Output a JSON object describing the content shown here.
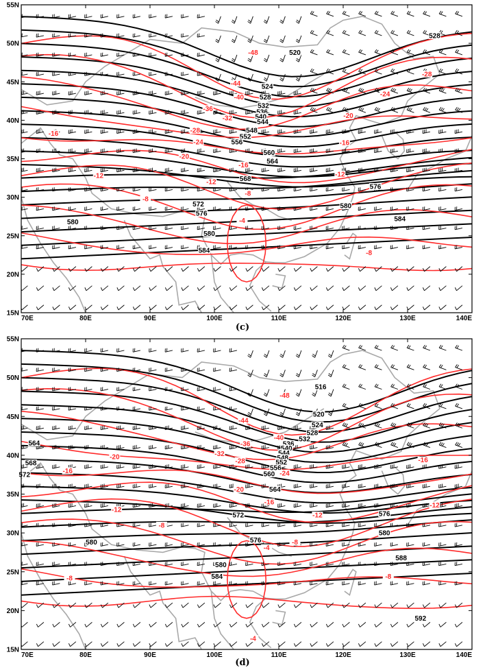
{
  "panels": [
    {
      "id": "c",
      "caption": "(c)",
      "lon_ticks": [
        "70E",
        "80E",
        "90E",
        "100E",
        "110E",
        "120E",
        "130E",
        "140E"
      ],
      "lat_ticks": [
        "15N",
        "20N",
        "25N",
        "30N",
        "35N",
        "40N",
        "45N",
        "50N",
        "55N"
      ],
      "height_labels": [
        {
          "text": "520",
          "lon": 112.5,
          "lat": 48.8
        },
        {
          "text": "528",
          "lon": 134.2,
          "lat": 51.0
        },
        {
          "text": "524",
          "lon": 108.2,
          "lat": 44.4
        },
        {
          "text": "528",
          "lon": 107.9,
          "lat": 43.0
        },
        {
          "text": "532",
          "lon": 107.6,
          "lat": 41.9
        },
        {
          "text": "536",
          "lon": 107.4,
          "lat": 41.1
        },
        {
          "text": "540",
          "lon": 107.2,
          "lat": 40.5
        },
        {
          "text": "544",
          "lon": 107.5,
          "lat": 39.8
        },
        {
          "text": "548",
          "lon": 105.8,
          "lat": 38.7
        },
        {
          "text": "552",
          "lon": 104.8,
          "lat": 37.9
        },
        {
          "text": "556",
          "lon": 103.5,
          "lat": 37.2
        },
        {
          "text": "560",
          "lon": 108.5,
          "lat": 35.8
        },
        {
          "text": "564",
          "lon": 109.0,
          "lat": 34.7
        },
        {
          "text": "568",
          "lon": 104.8,
          "lat": 32.4
        },
        {
          "text": "572",
          "lon": 97.5,
          "lat": 29.1
        },
        {
          "text": "576",
          "lon": 125.0,
          "lat": 31.4
        },
        {
          "text": "576",
          "lon": 98.0,
          "lat": 27.9
        },
        {
          "text": "580",
          "lon": 120.4,
          "lat": 28.9
        },
        {
          "text": "580",
          "lon": 78.0,
          "lat": 26.8
        },
        {
          "text": "580",
          "lon": 99.2,
          "lat": 25.3
        },
        {
          "text": "584",
          "lon": 128.8,
          "lat": 27.2
        },
        {
          "text": "584",
          "lon": 98.4,
          "lat": 23.1
        }
      ],
      "temp_labels": [
        {
          "text": "-48",
          "lon": 106.0,
          "lat": 48.8
        },
        {
          "text": "-44",
          "lon": 103.3,
          "lat": 44.8
        },
        {
          "text": "-40",
          "lon": 103.8,
          "lat": 43.0
        },
        {
          "text": "-36",
          "lon": 99.0,
          "lat": 41.5
        },
        {
          "text": "-32",
          "lon": 102.0,
          "lat": 40.3
        },
        {
          "text": "-28",
          "lon": 97.0,
          "lat": 38.7
        },
        {
          "text": "-24",
          "lon": 97.5,
          "lat": 37.2
        },
        {
          "text": "-20",
          "lon": 95.3,
          "lat": 35.3
        },
        {
          "text": "-28",
          "lon": 133.0,
          "lat": 46.0
        },
        {
          "text": "-24",
          "lon": 126.5,
          "lat": 43.4
        },
        {
          "text": "-20",
          "lon": 120.8,
          "lat": 40.6
        },
        {
          "text": "-16",
          "lon": 75.0,
          "lat": 38.3
        },
        {
          "text": "-16",
          "lon": 120.2,
          "lat": 37.1
        },
        {
          "text": "-16",
          "lon": 104.5,
          "lat": 34.2
        },
        {
          "text": "-12",
          "lon": 82.0,
          "lat": 32.8
        },
        {
          "text": "-12",
          "lon": 99.5,
          "lat": 32.0
        },
        {
          "text": "-12",
          "lon": 119.5,
          "lat": 33.0
        },
        {
          "text": "-8",
          "lon": 89.3,
          "lat": 29.8
        },
        {
          "text": "-8",
          "lon": 105.2,
          "lat": 30.5
        },
        {
          "text": "-4",
          "lon": 104.3,
          "lat": 27.0
        },
        {
          "text": "-8",
          "lon": 124.0,
          "lat": 22.8
        }
      ]
    },
    {
      "id": "d",
      "caption": "(d)",
      "lon_ticks": [
        "70E",
        "80E",
        "90E",
        "100E",
        "110E",
        "120E",
        "130E",
        "140E"
      ],
      "lat_ticks": [
        "15N",
        "20N",
        "25N",
        "30N",
        "35N",
        "40N",
        "45N",
        "50N",
        "55N"
      ],
      "height_labels": [
        {
          "text": "516",
          "lon": 116.5,
          "lat": 48.8
        },
        {
          "text": "520",
          "lon": 116.2,
          "lat": 45.3
        },
        {
          "text": "524",
          "lon": 116.0,
          "lat": 43.9
        },
        {
          "text": "528",
          "lon": 115.2,
          "lat": 42.9
        },
        {
          "text": "532",
          "lon": 114.0,
          "lat": 42.1
        },
        {
          "text": "536",
          "lon": 111.5,
          "lat": 41.5
        },
        {
          "text": "540",
          "lon": 111.2,
          "lat": 40.9
        },
        {
          "text": "544",
          "lon": 110.8,
          "lat": 40.3
        },
        {
          "text": "548",
          "lon": 110.6,
          "lat": 39.7
        },
        {
          "text": "552",
          "lon": 110.4,
          "lat": 39.1
        },
        {
          "text": "556",
          "lon": 109.5,
          "lat": 38.4
        },
        {
          "text": "560",
          "lon": 108.5,
          "lat": 37.6
        },
        {
          "text": "564",
          "lon": 72.0,
          "lat": 41.6
        },
        {
          "text": "564",
          "lon": 109.4,
          "lat": 35.6
        },
        {
          "text": "568",
          "lon": 71.5,
          "lat": 39.0
        },
        {
          "text": "572",
          "lon": 70.5,
          "lat": 37.5
        },
        {
          "text": "572",
          "lon": 103.7,
          "lat": 32.3
        },
        {
          "text": "576",
          "lon": 126.4,
          "lat": 32.5
        },
        {
          "text": "576",
          "lon": 106.4,
          "lat": 29.1
        },
        {
          "text": "580",
          "lon": 80.9,
          "lat": 28.8
        },
        {
          "text": "580",
          "lon": 126.4,
          "lat": 30.0
        },
        {
          "text": "580",
          "lon": 101.0,
          "lat": 25.9
        },
        {
          "text": "584",
          "lon": 100.4,
          "lat": 24.4
        },
        {
          "text": "588",
          "lon": 129.0,
          "lat": 26.8
        },
        {
          "text": "592",
          "lon": 132.0,
          "lat": 19.0
        }
      ],
      "temp_labels": [
        {
          "text": "-48",
          "lon": 110.9,
          "lat": 47.7
        },
        {
          "text": "-44",
          "lon": 104.5,
          "lat": 44.5
        },
        {
          "text": "-40",
          "lon": 110.0,
          "lat": 42.3
        },
        {
          "text": "-36",
          "lon": 104.8,
          "lat": 41.5
        },
        {
          "text": "-32",
          "lon": 100.8,
          "lat": 40.2
        },
        {
          "text": "-28",
          "lon": 104.0,
          "lat": 39.3
        },
        {
          "text": "-24",
          "lon": 110.9,
          "lat": 37.7
        },
        {
          "text": "-20",
          "lon": 84.5,
          "lat": 39.8
        },
        {
          "text": "-20",
          "lon": 103.8,
          "lat": 35.6
        },
        {
          "text": "-16",
          "lon": 77.2,
          "lat": 38.0
        },
        {
          "text": "-16",
          "lon": 108.5,
          "lat": 34.0
        },
        {
          "text": "-16",
          "lon": 132.4,
          "lat": 39.4
        },
        {
          "text": "-12",
          "lon": 84.8,
          "lat": 33.0
        },
        {
          "text": "-12",
          "lon": 116.0,
          "lat": 32.3
        },
        {
          "text": "-12",
          "lon": 134.2,
          "lat": 33.6
        },
        {
          "text": "-8",
          "lon": 91.8,
          "lat": 31.0
        },
        {
          "text": "-8",
          "lon": 112.5,
          "lat": 28.8
        },
        {
          "text": "-4",
          "lon": 108.1,
          "lat": 28.1
        },
        {
          "text": "-8",
          "lon": 77.5,
          "lat": 24.2
        },
        {
          "text": "-8",
          "lon": 127.0,
          "lat": 24.4
        },
        {
          "text": "-4",
          "lon": 106.0,
          "lat": 16.4
        }
      ]
    }
  ],
  "colors": {
    "geopotential": "#000000",
    "temperature": "#ff2a2a",
    "borders": "#a8a8a8",
    "wind_barbs": "#000000"
  }
}
